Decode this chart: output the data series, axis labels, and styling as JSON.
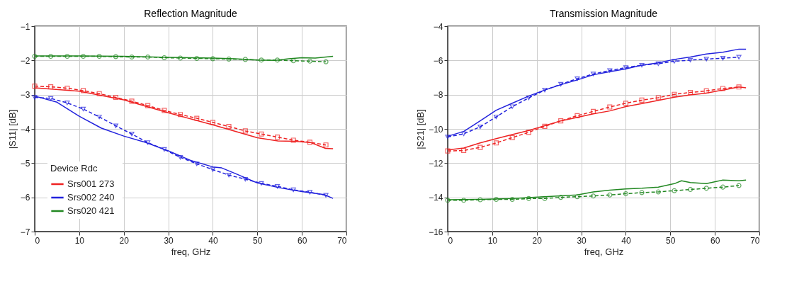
{
  "chart_data": [
    {
      "type": "line",
      "title": "Reflection Magnitude",
      "xlabel": "freq, GHz",
      "ylabel": "|S11| [dB]",
      "xlim": [
        0,
        70
      ],
      "xticks": [
        0,
        10,
        20,
        30,
        40,
        50,
        60,
        70
      ],
      "ylim": [
        -7,
        -1
      ],
      "yticks": [
        -7,
        -6,
        -5,
        -4,
        -3,
        -2,
        -1
      ],
      "grid": true,
      "legend": "bottom left",
      "legend_title": "Device     Rdc",
      "series": [
        {
          "name": "Srs001   273",
          "color": "#ee2222",
          "line_style": "solid",
          "marker": "none",
          "x": [
            0,
            10,
            20,
            30,
            40,
            50,
            54.6,
            58.3,
            62,
            65.3,
            67
          ],
          "values": [
            -2.8,
            -2.9,
            -3.15,
            -3.53,
            -3.88,
            -4.26,
            -4.35,
            -4.36,
            -4.4,
            -4.57,
            -4.58
          ]
        },
        {
          "name": "Srs002   240",
          "color": "#2222dd",
          "line_style": "solid",
          "marker": "none",
          "x": [
            0,
            5,
            10,
            15,
            20,
            25,
            30,
            35,
            40,
            42,
            45,
            50,
            55,
            60,
            65,
            67
          ],
          "values": [
            -3.04,
            -3.22,
            -3.63,
            -3.98,
            -4.21,
            -4.4,
            -4.64,
            -4.92,
            -5.11,
            -5.14,
            -5.3,
            -5.58,
            -5.72,
            -5.83,
            -5.92,
            -6.03
          ]
        },
        {
          "name": "Srs020   421",
          "color": "#228822",
          "line_style": "solid",
          "marker": "none",
          "x": [
            0,
            10,
            20,
            30,
            40,
            45,
            50,
            54,
            57,
            60,
            63,
            67
          ],
          "values": [
            -1.87,
            -1.87,
            -1.88,
            -1.91,
            -1.93,
            -1.95,
            -1.99,
            -2.0,
            -1.95,
            -1.92,
            -1.93,
            -1.88
          ]
        },
        {
          "color": "#ee2222",
          "line_style": "dashed",
          "marker": "square",
          "x": [
            0,
            3.6,
            7.3,
            10.9,
            14.5,
            18.2,
            21.8,
            25.4,
            29.1,
            32.7,
            36.4,
            40,
            43.6,
            47.3,
            50.9,
            54.5,
            58.1,
            61.8,
            65.4
          ],
          "values": [
            -2.75,
            -2.77,
            -2.81,
            -2.88,
            -2.97,
            -3.08,
            -3.19,
            -3.32,
            -3.46,
            -3.58,
            -3.69,
            -3.81,
            -3.93,
            -4.06,
            -4.15,
            -4.24,
            -4.33,
            -4.39,
            -4.47
          ]
        },
        {
          "color": "#2222dd",
          "line_style": "dashed",
          "marker": "triangle",
          "x": [
            0,
            3.6,
            7.3,
            10.9,
            14.5,
            18.2,
            21.8,
            25.4,
            29.1,
            32.7,
            36.4,
            40,
            43.6,
            47.3,
            50.9,
            54.5,
            58.1,
            61.8,
            65.4
          ],
          "values": [
            -3.08,
            -3.11,
            -3.24,
            -3.42,
            -3.65,
            -3.91,
            -4.15,
            -4.4,
            -4.6,
            -4.83,
            -5.02,
            -5.19,
            -5.35,
            -5.47,
            -5.59,
            -5.68,
            -5.78,
            -5.85,
            -5.94
          ]
        },
        {
          "color": "#228822",
          "line_style": "dashed",
          "marker": "circle",
          "x": [
            0,
            3.6,
            7.3,
            10.9,
            14.5,
            18.2,
            21.8,
            25.4,
            29.1,
            32.7,
            36.4,
            40,
            43.6,
            47.3,
            50.9,
            54.5,
            58.1,
            61.8,
            65.4
          ],
          "values": [
            -1.88,
            -1.88,
            -1.88,
            -1.88,
            -1.88,
            -1.89,
            -1.9,
            -1.9,
            -1.92,
            -1.93,
            -1.94,
            -1.95,
            -1.96,
            -1.97,
            -1.99,
            -1.99,
            -2.01,
            -2.02,
            -2.04
          ]
        }
      ]
    },
    {
      "type": "line",
      "title": "Transmission Magnitude",
      "xlabel": "freq, GHz",
      "ylabel": "|S21| [dB]",
      "xlim": [
        0,
        70
      ],
      "xticks": [
        0,
        10,
        20,
        30,
        40,
        50,
        60,
        70
      ],
      "ylim": [
        -16,
        -4
      ],
      "yticks": [
        -16,
        -14,
        -12,
        -10,
        -8,
        -6,
        -4
      ],
      "grid": true,
      "series": [
        {
          "color": "#ee2222",
          "line_style": "solid",
          "marker": "none",
          "x": [
            0,
            3.6,
            7.3,
            10.9,
            14.5,
            18.2,
            21.8,
            25.4,
            29.1,
            32.7,
            36.4,
            40,
            43.6,
            47.3,
            50.9,
            54.5,
            58.1,
            61.8,
            65.4,
            67
          ],
          "values": [
            -11.23,
            -11.12,
            -10.82,
            -10.57,
            -10.33,
            -10.09,
            -9.81,
            -9.53,
            -9.33,
            -9.12,
            -8.95,
            -8.7,
            -8.52,
            -8.33,
            -8.15,
            -8.01,
            -7.91,
            -7.73,
            -7.55,
            -7.6
          ]
        },
        {
          "color": "#2222dd",
          "line_style": "solid",
          "marker": "none",
          "x": [
            0,
            3.6,
            7.3,
            10.9,
            14.5,
            18.2,
            21.8,
            25.4,
            29.1,
            32.7,
            36.4,
            40,
            43.6,
            47.3,
            50.9,
            54.5,
            58.1,
            61.8,
            65.4,
            67
          ],
          "values": [
            -10.43,
            -10.15,
            -9.53,
            -8.91,
            -8.5,
            -8.08,
            -7.73,
            -7.42,
            -7.14,
            -6.84,
            -6.66,
            -6.49,
            -6.28,
            -6.14,
            -5.94,
            -5.8,
            -5.62,
            -5.52,
            -5.34,
            -5.34
          ]
        },
        {
          "color": "#228822",
          "line_style": "solid",
          "marker": "none",
          "x": [
            0,
            7.3,
            14.5,
            21.8,
            29.1,
            32.7,
            36.4,
            40,
            43.6,
            47.3,
            50.9,
            52.5,
            54.5,
            58.1,
            61.8,
            65.4,
            67
          ],
          "values": [
            -14.14,
            -14.12,
            -14.07,
            -13.96,
            -13.86,
            -13.68,
            -13.58,
            -13.51,
            -13.47,
            -13.4,
            -13.2,
            -13.03,
            -13.13,
            -13.2,
            -12.99,
            -13.03,
            -12.99
          ]
        },
        {
          "color": "#ee2222",
          "line_style": "dashed",
          "marker": "square",
          "x": [
            0,
            3.6,
            7.3,
            10.9,
            14.5,
            18.2,
            21.8,
            25.4,
            29.1,
            32.7,
            36.4,
            40,
            43.6,
            47.3,
            50.9,
            54.5,
            58.1,
            61.8,
            65.4
          ],
          "values": [
            -11.29,
            -11.26,
            -11.08,
            -10.82,
            -10.51,
            -10.2,
            -9.85,
            -9.53,
            -9.23,
            -8.98,
            -8.72,
            -8.5,
            -8.32,
            -8.18,
            -7.98,
            -7.87,
            -7.78,
            -7.64,
            -7.55
          ]
        },
        {
          "color": "#2222dd",
          "line_style": "dashed",
          "marker": "triangle",
          "x": [
            0,
            3.6,
            7.3,
            10.9,
            14.5,
            18.2,
            21.8,
            25.4,
            29.1,
            32.7,
            36.4,
            40,
            43.6,
            47.3,
            50.9,
            54.5,
            58.1,
            61.8,
            65.4
          ],
          "values": [
            -10.47,
            -10.29,
            -9.88,
            -9.3,
            -8.7,
            -8.19,
            -7.73,
            -7.39,
            -7.07,
            -6.79,
            -6.59,
            -6.42,
            -6.28,
            -6.19,
            -6.05,
            -5.98,
            -5.92,
            -5.87,
            -5.81
          ]
        },
        {
          "color": "#228822",
          "line_style": "dashed",
          "marker": "circle",
          "x": [
            0,
            3.6,
            7.3,
            10.9,
            14.5,
            18.2,
            21.8,
            25.4,
            29.1,
            32.7,
            36.4,
            40,
            43.6,
            47.3,
            50.9,
            54.5,
            58.1,
            61.8,
            65.4
          ],
          "values": [
            -14.17,
            -14.17,
            -14.14,
            -14.12,
            -14.12,
            -14.07,
            -14.07,
            -14.0,
            -13.96,
            -13.92,
            -13.86,
            -13.79,
            -13.72,
            -13.68,
            -13.61,
            -13.54,
            -13.47,
            -13.4,
            -13.31
          ]
        }
      ]
    }
  ]
}
